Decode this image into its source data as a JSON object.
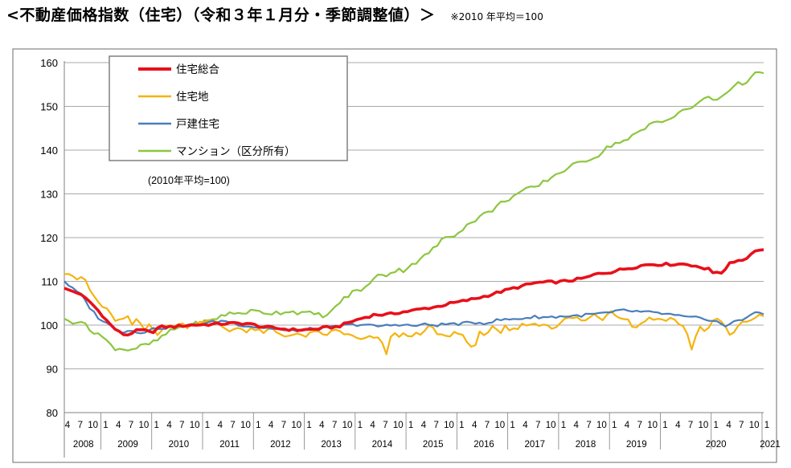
{
  "header": {
    "title": "<不動産価格指数（住宅）（令和３年１月分・季節調整値）＞",
    "note": "※2010 年平均＝100"
  },
  "chart_data": {
    "type": "line",
    "title": "不動産価格指数（住宅）（令和３年１月分・季節調整値）",
    "ylabel": "",
    "xlabel": "",
    "ylim": [
      80,
      160
    ],
    "yticks": [
      80,
      90,
      100,
      110,
      120,
      130,
      140,
      150,
      160
    ],
    "grid": true,
    "legend_position": "top-left",
    "base_note": "(2010年平均=100)",
    "month_labels": [
      "4",
      "7",
      "10",
      "1",
      "4",
      "7",
      "10",
      "1",
      "4",
      "7",
      "10",
      "1",
      "4",
      "7",
      "10",
      "1",
      "4",
      "7",
      "10",
      "1",
      "4",
      "7",
      "10",
      "1",
      "4",
      "7",
      "10",
      "1",
      "4",
      "7",
      "10",
      "1",
      "4",
      "7",
      "10",
      "1",
      "4",
      "7",
      "10",
      "1",
      "4",
      "7",
      "10",
      "1",
      "4",
      "7",
      "10",
      "1",
      "4",
      "7",
      "10",
      "1",
      "4",
      "7",
      "10",
      "1"
    ],
    "year_labels": [
      "2008",
      "2009",
      "2010",
      "2011",
      "2012",
      "2013",
      "2014",
      "2015",
      "2016",
      "2017",
      "2018",
      "2019",
      "2020",
      "2021"
    ],
    "x_start": "2008-04",
    "x_end": "2021-01",
    "series": [
      {
        "name": "住宅総合",
        "color": "#e8101a",
        "anchors": [
          [
            0,
            108.3
          ],
          [
            3,
            107.5
          ],
          [
            6,
            105.5
          ],
          [
            9,
            102.5
          ],
          [
            11,
            100.2
          ],
          [
            13,
            98.5
          ],
          [
            15,
            97.6
          ],
          [
            17,
            98.6
          ],
          [
            19,
            98.9
          ],
          [
            21,
            98.2
          ],
          [
            23,
            99.6
          ],
          [
            26,
            99.6
          ],
          [
            30,
            100.0
          ],
          [
            33,
            100.1
          ],
          [
            36,
            100.2
          ],
          [
            40,
            100.4
          ],
          [
            44,
            100.4
          ],
          [
            48,
            99.6
          ],
          [
            52,
            99.2
          ],
          [
            56,
            98.9
          ],
          [
            60,
            99.0
          ],
          [
            63,
            99.4
          ],
          [
            66,
            99.6
          ],
          [
            69,
            100.7
          ],
          [
            72,
            101.6
          ],
          [
            75,
            102.4
          ],
          [
            78,
            102.4
          ],
          [
            81,
            102.9
          ],
          [
            84,
            103.3
          ],
          [
            87,
            103.8
          ],
          [
            90,
            104.2
          ],
          [
            93,
            104.9
          ],
          [
            96,
            105.4
          ],
          [
            99,
            106.0
          ],
          [
            102,
            106.7
          ],
          [
            105,
            107.5
          ],
          [
            108,
            108.3
          ],
          [
            111,
            109.0
          ],
          [
            114,
            109.7
          ],
          [
            117,
            109.8
          ],
          [
            120,
            109.9
          ],
          [
            123,
            110.3
          ],
          [
            126,
            110.8
          ],
          [
            129,
            111.8
          ],
          [
            132,
            112.1
          ],
          [
            135,
            112.8
          ],
          [
            138,
            113.3
          ],
          [
            141,
            113.9
          ],
          [
            144,
            113.9
          ],
          [
            147,
            113.9
          ],
          [
            150,
            114.0
          ],
          [
            153,
            113.5
          ],
          [
            154,
            112.6
          ],
          [
            156,
            113.3
          ],
          [
            157,
            111.7
          ],
          [
            159,
            112.0
          ],
          [
            161,
            114.5
          ],
          [
            163,
            114.8
          ],
          [
            164,
            114.9
          ],
          [
            166,
            116.1
          ],
          [
            167,
            117.2
          ],
          [
            169,
            117.0
          ]
        ],
        "jitter": 0.5
      },
      {
        "name": "住宅地",
        "color": "#f5b40d",
        "anchors": [
          [
            0,
            112.2
          ],
          [
            2,
            111.5
          ],
          [
            3,
            109.8
          ],
          [
            4,
            111.0
          ],
          [
            5,
            110.5
          ],
          [
            6,
            108.2
          ],
          [
            8,
            105.4
          ],
          [
            10,
            103.6
          ],
          [
            12,
            101.4
          ],
          [
            14,
            100.8
          ],
          [
            15,
            102.3
          ],
          [
            16,
            100.1
          ],
          [
            17,
            100.1
          ],
          [
            18,
            102.0
          ],
          [
            19,
            98.2
          ],
          [
            20,
            99.5
          ],
          [
            21,
            101.0
          ],
          [
            22,
            97.9
          ],
          [
            24,
            99.2
          ],
          [
            27,
            100.3
          ],
          [
            30,
            99.8
          ],
          [
            33,
            101.0
          ],
          [
            36,
            100.8
          ],
          [
            38,
            99.8
          ],
          [
            40,
            98.6
          ],
          [
            42,
            99.8
          ],
          [
            44,
            98.3
          ],
          [
            46,
            99.2
          ],
          [
            48,
            97.9
          ],
          [
            50,
            99.3
          ],
          [
            52,
            98.0
          ],
          [
            55,
            97.6
          ],
          [
            58,
            97.6
          ],
          [
            61,
            98.2
          ],
          [
            63,
            97.8
          ],
          [
            66,
            98.9
          ],
          [
            69,
            97.5
          ],
          [
            72,
            96.5
          ],
          [
            75,
            97.4
          ],
          [
            77,
            95.6
          ],
          [
            78,
            93.4
          ],
          [
            79,
            97.8
          ],
          [
            81,
            97.6
          ],
          [
            84,
            98.0
          ],
          [
            86,
            97.4
          ],
          [
            88,
            99.8
          ],
          [
            90,
            98.2
          ],
          [
            92,
            97.1
          ],
          [
            94,
            98.3
          ],
          [
            96,
            97.9
          ],
          [
            98,
            96.0
          ],
          [
            99,
            93.3
          ],
          [
            100,
            97.9
          ],
          [
            103,
            98.7
          ],
          [
            104,
            101.4
          ],
          [
            105,
            95.4
          ],
          [
            106,
            99.8
          ],
          [
            108,
            98.4
          ],
          [
            110,
            99.5
          ],
          [
            112,
            100.7
          ],
          [
            114,
            99.8
          ],
          [
            116,
            100.4
          ],
          [
            118,
            99.5
          ],
          [
            120,
            100.7
          ],
          [
            122,
            101.6
          ],
          [
            124,
            101.5
          ],
          [
            126,
            101.0
          ],
          [
            128,
            102.4
          ],
          [
            130,
            101.5
          ],
          [
            132,
            103.4
          ],
          [
            134,
            102.2
          ],
          [
            136,
            101.3
          ],
          [
            138,
            99.2
          ],
          [
            140,
            101.2
          ],
          [
            142,
            101.5
          ],
          [
            144,
            101.3
          ],
          [
            146,
            101.6
          ],
          [
            148,
            101.0
          ],
          [
            150,
            99.1
          ],
          [
            152,
            93.7
          ],
          [
            153,
            99.8
          ],
          [
            155,
            98.8
          ],
          [
            157,
            101.0
          ],
          [
            159,
            100.9
          ],
          [
            161,
            97.2
          ],
          [
            163,
            99.8
          ],
          [
            165,
            101.0
          ],
          [
            167,
            101.8
          ],
          [
            169,
            102.1
          ]
        ],
        "jitter": 1.0
      },
      {
        "name": "戸建住宅",
        "color": "#4a7ebb",
        "anchors": [
          [
            0,
            110.1
          ],
          [
            2,
            108.3
          ],
          [
            4,
            107.0
          ],
          [
            6,
            104.2
          ],
          [
            8,
            101.9
          ],
          [
            10,
            100.5
          ],
          [
            12,
            99.4
          ],
          [
            14,
            98.4
          ],
          [
            16,
            98.8
          ],
          [
            18,
            98.4
          ],
          [
            20,
            98.6
          ],
          [
            22,
            99.3
          ],
          [
            24,
            99.4
          ],
          [
            27,
            99.6
          ],
          [
            30,
            99.9
          ],
          [
            33,
            100.3
          ],
          [
            36,
            100.7
          ],
          [
            39,
            101.0
          ],
          [
            42,
            100.2
          ],
          [
            45,
            99.7
          ],
          [
            48,
            99.4
          ],
          [
            51,
            99.2
          ],
          [
            54,
            98.6
          ],
          [
            57,
            98.9
          ],
          [
            60,
            99.1
          ],
          [
            63,
            99.2
          ],
          [
            66,
            99.7
          ],
          [
            69,
            100.0
          ],
          [
            72,
            100.2
          ],
          [
            75,
            99.7
          ],
          [
            78,
            99.9
          ],
          [
            81,
            100.2
          ],
          [
            84,
            99.8
          ],
          [
            87,
            100.1
          ],
          [
            90,
            100.0
          ],
          [
            93,
            100.3
          ],
          [
            96,
            100.3
          ],
          [
            99,
            100.6
          ],
          [
            102,
            100.5
          ],
          [
            105,
            101.2
          ],
          [
            108,
            101.3
          ],
          [
            111,
            101.6
          ],
          [
            114,
            101.9
          ],
          [
            117,
            101.8
          ],
          [
            120,
            102.0
          ],
          [
            123,
            102.1
          ],
          [
            126,
            102.3
          ],
          [
            129,
            102.6
          ],
          [
            132,
            102.8
          ],
          [
            135,
            103.4
          ],
          [
            138,
            103.1
          ],
          [
            141,
            102.9
          ],
          [
            144,
            102.7
          ],
          [
            147,
            102.3
          ],
          [
            150,
            101.8
          ],
          [
            153,
            101.6
          ],
          [
            156,
            101.3
          ],
          [
            159,
            100.3
          ],
          [
            160,
            99.3
          ],
          [
            162,
            101.1
          ],
          [
            164,
            101.4
          ],
          [
            166,
            102.4
          ],
          [
            168,
            102.8
          ],
          [
            169,
            102.6
          ]
        ],
        "jitter": 0.6
      },
      {
        "name": "マンション（区分所有）",
        "color": "#8cc63f",
        "anchors": [
          [
            0,
            101.1
          ],
          [
            2,
            100.8
          ],
          [
            4,
            101.1
          ],
          [
            6,
            98.9
          ],
          [
            8,
            98.3
          ],
          [
            10,
            96.5
          ],
          [
            12,
            94.8
          ],
          [
            14,
            94.6
          ],
          [
            16,
            94.4
          ],
          [
            18,
            95.0
          ],
          [
            20,
            95.5
          ],
          [
            22,
            96.2
          ],
          [
            24,
            97.6
          ],
          [
            27,
            99.3
          ],
          [
            30,
            99.9
          ],
          [
            33,
            100.6
          ],
          [
            36,
            101.1
          ],
          [
            38,
            102.3
          ],
          [
            40,
            102.6
          ],
          [
            42,
            102.7
          ],
          [
            44,
            103.0
          ],
          [
            46,
            103.2
          ],
          [
            48,
            102.9
          ],
          [
            50,
            102.8
          ],
          [
            52,
            102.9
          ],
          [
            54,
            103.2
          ],
          [
            56,
            103.0
          ],
          [
            58,
            102.7
          ],
          [
            60,
            102.6
          ],
          [
            62,
            102.3
          ],
          [
            64,
            102.2
          ],
          [
            66,
            104.9
          ],
          [
            68,
            106.3
          ],
          [
            70,
            107.7
          ],
          [
            72,
            108.3
          ],
          [
            74,
            109.3
          ],
          [
            76,
            112.1
          ],
          [
            78,
            111.4
          ],
          [
            80,
            112.5
          ],
          [
            82,
            112.6
          ],
          [
            84,
            114.0
          ],
          [
            86,
            114.8
          ],
          [
            88,
            116.6
          ],
          [
            90,
            118.1
          ],
          [
            92,
            120.1
          ],
          [
            94,
            120.5
          ],
          [
            96,
            122.0
          ],
          [
            98,
            123.2
          ],
          [
            100,
            124.6
          ],
          [
            102,
            125.6
          ],
          [
            104,
            126.6
          ],
          [
            106,
            128.3
          ],
          [
            108,
            129.2
          ],
          [
            110,
            130.3
          ],
          [
            112,
            131.1
          ],
          [
            114,
            131.4
          ],
          [
            116,
            132.8
          ],
          [
            118,
            134.0
          ],
          [
            120,
            135.0
          ],
          [
            122,
            136.2
          ],
          [
            124,
            136.8
          ],
          [
            126,
            137.8
          ],
          [
            128,
            138.3
          ],
          [
            130,
            139.6
          ],
          [
            132,
            141.1
          ],
          [
            134,
            141.9
          ],
          [
            136,
            142.2
          ],
          [
            138,
            143.6
          ],
          [
            140,
            144.6
          ],
          [
            142,
            146.3
          ],
          [
            144,
            146.8
          ],
          [
            146,
            147.0
          ],
          [
            148,
            147.9
          ],
          [
            150,
            149.3
          ],
          [
            152,
            150.0
          ],
          [
            154,
            150.9
          ],
          [
            155,
            152.7
          ],
          [
            156,
            151.6
          ],
          [
            158,
            151.5
          ],
          [
            160,
            153.4
          ],
          [
            162,
            154.8
          ],
          [
            164,
            155.4
          ],
          [
            166,
            156.5
          ],
          [
            167,
            157.4
          ],
          [
            169,
            157.3
          ]
        ],
        "jitter": 0.9
      }
    ]
  }
}
